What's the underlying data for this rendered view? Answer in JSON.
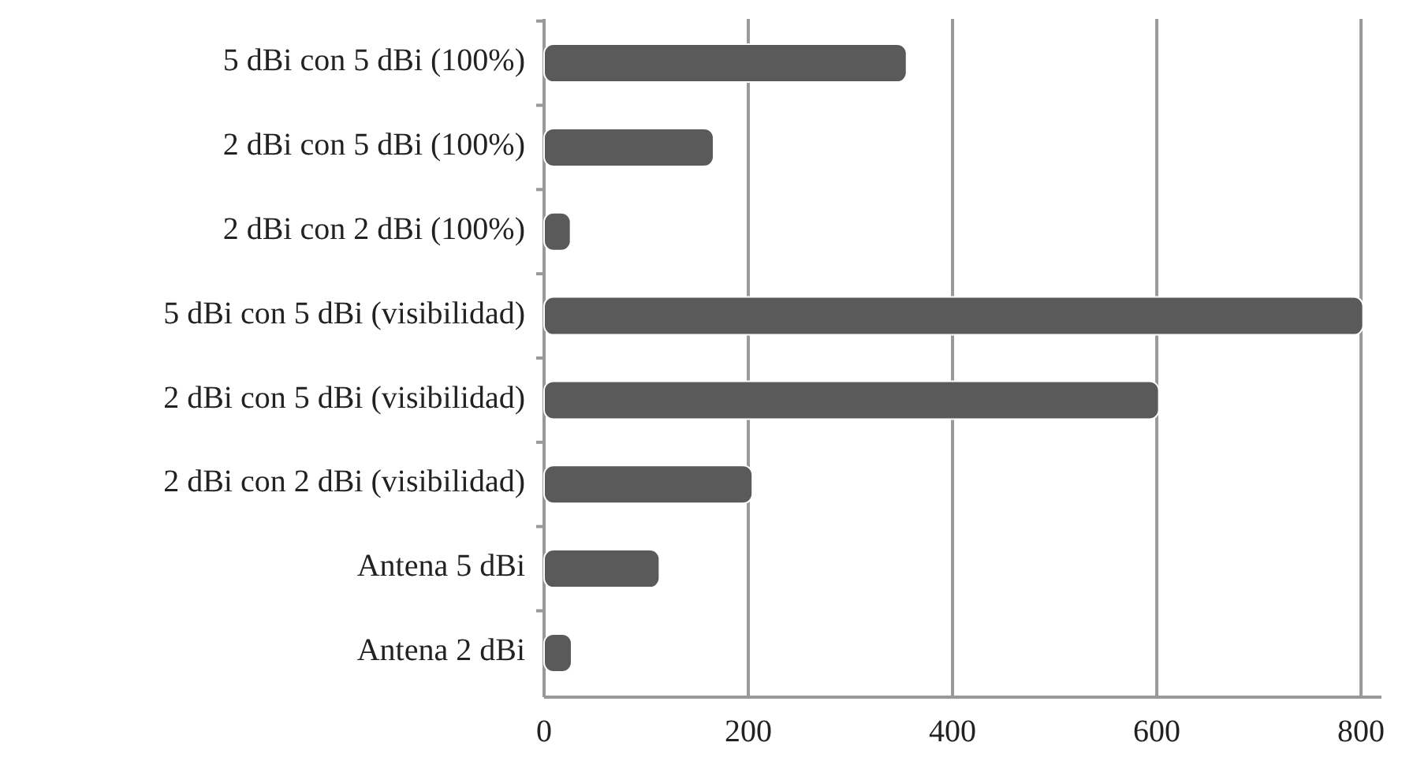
{
  "chart_data": {
    "type": "bar",
    "orientation": "horizontal",
    "categories": [
      "5 dBi con 5 dBi (100%)",
      "2 dBi con 5 dBi (100%)",
      "2 dBi con 2 dBi (100%)",
      "5 dBi con 5 dBi (visibilidad)",
      "2 dBi con 5 dBi (visibilidad)",
      "2 dBi con 2 dBi (visibilidad)",
      "Antena 5 dBi",
      "Antena 2 dBi"
    ],
    "values": [
      355,
      166,
      26,
      802,
      602,
      204,
      113,
      27
    ],
    "color": "#5a5a5a",
    "xlim": [
      0,
      820
    ],
    "xticks": [
      0,
      200,
      400,
      600,
      800
    ],
    "grid": "x"
  }
}
